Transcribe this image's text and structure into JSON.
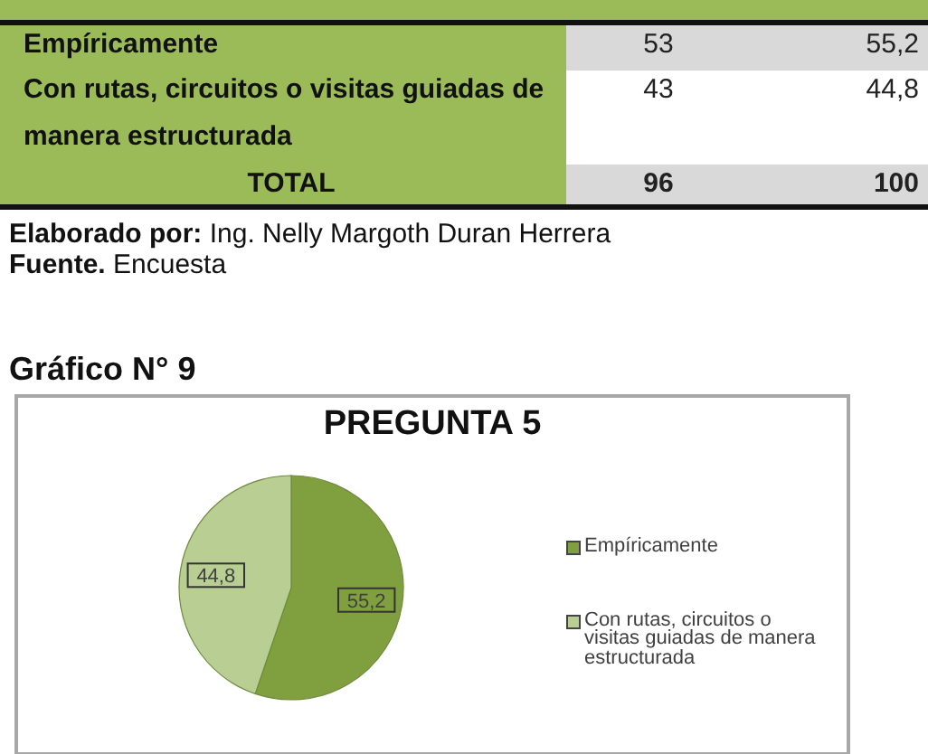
{
  "chart_data": [
    {
      "type": "other",
      "categories": [
        "Empíricamente",
        "Con rutas, circuitos o visitas guiadas de manera estructurada",
        "TOTAL"
      ],
      "series": [
        {
          "values": [
            53,
            43,
            96
          ],
          "value_labels": [
            "53",
            "43",
            "96"
          ],
          "colors": [
            "#d9d9d9",
            "#ffffff",
            "#d9d9d9"
          ]
        },
        {
          "values": [
            55.2,
            44.8,
            100
          ],
          "value_labels": [
            "55,2",
            "44,8",
            "100"
          ],
          "colors": [
            "#d9d9d9",
            "#ffffff",
            "#d9d9d9"
          ]
        }
      ],
      "annotations": [
        "Elaborado por: Ing. Nelly Margoth Duran Herrera",
        "Fuente. Encuesta"
      ]
    },
    {
      "type": "pie",
      "title": "PREGUNTA 5",
      "annotations": [
        "Gráfico N° 9"
      ],
      "categories": [
        "Empíricamente",
        "Con rutas, circuitos o visitas guiadas de manera estructurada"
      ],
      "values": [
        55.2,
        44.8
      ],
      "colors": [
        "#80a040",
        "#b8ce92"
      ],
      "value_labels": [
        "55,2",
        "44,8"
      ],
      "legend": "right"
    }
  ]
}
